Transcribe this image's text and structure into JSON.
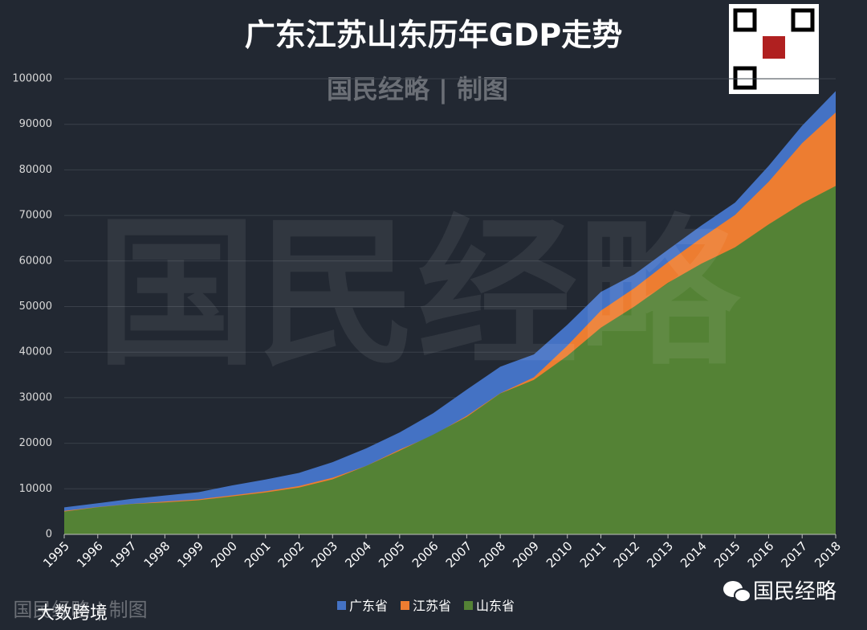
{
  "chart_data": {
    "type": "area",
    "title": "广东江苏山东历年GDP走势",
    "categories": [
      "1995",
      "1996",
      "1997",
      "1998",
      "1999",
      "2000",
      "2001",
      "2002",
      "2003",
      "2004",
      "2005",
      "2006",
      "2007",
      "2008",
      "2009",
      "2010",
      "2011",
      "2012",
      "2013",
      "2014",
      "2015",
      "2016",
      "2017",
      "2018"
    ],
    "series": [
      {
        "name": "广东省",
        "color": "#4472c4",
        "values": [
          5934,
          6834,
          7775,
          8531,
          9251,
          10741,
          12039,
          13502,
          15845,
          18865,
          22367,
          26588,
          31777,
          36797,
          39483,
          46013,
          53210,
          57068,
          62475,
          67810,
          72813,
          80855,
          89705,
          97278
        ]
      },
      {
        "name": "江苏省",
        "color": "#ed7d31",
        "values": [
          5155,
          6004,
          6680,
          7200,
          7698,
          8554,
          9457,
          10607,
          12443,
          15004,
          18599,
          21742,
          26018,
          30982,
          34457,
          41425,
          49110,
          54058,
          59753,
          65088,
          70116,
          77388,
          85870,
          92595
        ]
      },
      {
        "name": "山东省",
        "color": "#548235",
        "values": [
          5002,
          5960,
          6650,
          7021,
          7493,
          8337,
          9195,
          10276,
          12078,
          15022,
          18367,
          21900,
          25777,
          30933,
          33897,
          39170,
          45362,
          50013,
          55230,
          59427,
          63002,
          68024,
          72634,
          76470
        ]
      }
    ],
    "ylim": [
      0,
      100000
    ],
    "yticks": [
      0,
      10000,
      20000,
      30000,
      40000,
      50000,
      60000,
      70000,
      80000,
      90000,
      100000
    ],
    "grid": true,
    "legend": "bottom"
  },
  "watermark": {
    "top": "国民经略 | 制图",
    "center": "国民经略",
    "bottom_left": "国民经略 | 制图",
    "bottom_left_overlay": "大数跨境",
    "bottom_right": "国民经略"
  }
}
